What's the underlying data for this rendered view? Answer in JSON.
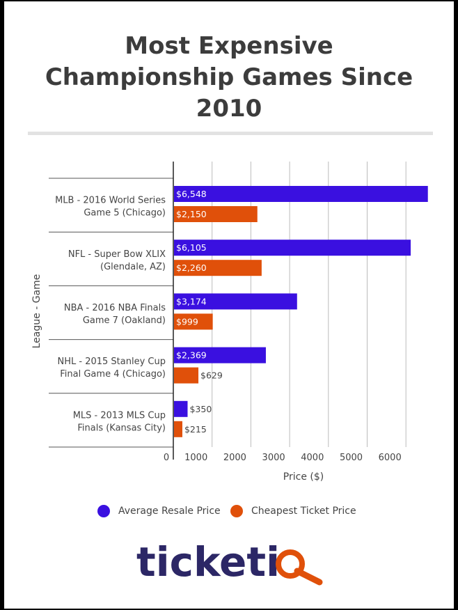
{
  "title": "Most Expensive Championship Games Since 2010",
  "title_lines": [
    "Most Expensive",
    "Championship Games Since",
    "2010"
  ],
  "colors": {
    "avg": "#3a10e0",
    "cheap": "#e0500a",
    "axis_text": "#444444",
    "grid": "#bbbbbb"
  },
  "logo": {
    "text_main": "ticketi",
    "text_tail": "Q",
    "icon": "magnifier-icon",
    "tail_color": "#e0500a"
  },
  "chart_data": {
    "type": "bar",
    "orientation": "horizontal",
    "xlabel": "Price ($)",
    "ylabel": "League - Game",
    "xlim": [
      0,
      6500
    ],
    "x_ticks": [
      0,
      1000,
      2000,
      3000,
      4000,
      5000,
      6000
    ],
    "x_tick_labels": [
      "0",
      "1000",
      "2000",
      "3000",
      "4000",
      "5000",
      "6000"
    ],
    "grid": true,
    "legend_position": "bottom",
    "categories": [
      [
        "MLB - 2016 World Series",
        "Game 5 (Chicago)"
      ],
      [
        "NFL - Super Bow XLIX",
        "(Glendale, AZ)"
      ],
      [
        "NBA - 2016 NBA Finals",
        "Game 7 (Oakland)"
      ],
      [
        "NHL - 2015 Stanley Cup",
        "Final Game 4 (Chicago)"
      ],
      [
        "MLS - 2013 MLS Cup",
        "Finals (Kansas City)"
      ]
    ],
    "series": [
      {
        "name": "Average Resale Price",
        "color": "#3a10e0",
        "values": [
          6548,
          6105,
          3174,
          2369,
          350
        ],
        "labels": [
          "$6,548",
          "$6,105",
          "$3,174",
          "$2,369",
          "$350"
        ]
      },
      {
        "name": "Cheapest Ticket Price",
        "color": "#e0500a",
        "values": [
          2150,
          2260,
          999,
          629,
          215
        ],
        "labels": [
          "$2,150",
          "$2,260",
          "$999",
          "$629",
          "$215"
        ]
      }
    ]
  }
}
